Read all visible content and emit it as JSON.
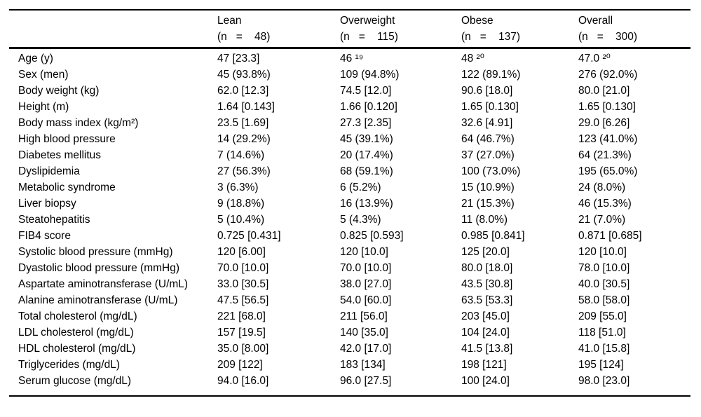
{
  "page": {
    "background_color": "#ffffff",
    "text_color": "#000000",
    "rule_color": "#000000"
  },
  "table": {
    "columns": [
      {
        "label": "",
        "sub": ""
      },
      {
        "label": "Lean",
        "sub": "(n   =    48)"
      },
      {
        "label": "Overweight",
        "sub": "(n   =    115)"
      },
      {
        "label": "Obese",
        "sub": "(n   =    137)"
      },
      {
        "label": "Overall",
        "sub": "(n   =    300)"
      }
    ],
    "rows": [
      {
        "label": "Age (y)",
        "values": [
          "47 [23.3]",
          "46 ¹⁹",
          "48 ²⁰",
          "47.0 ²⁰"
        ]
      },
      {
        "label": "Sex (men)",
        "values": [
          "45 (93.8%)",
          "109 (94.8%)",
          "122 (89.1%)",
          "276 (92.0%)"
        ]
      },
      {
        "label": "Body weight (kg)",
        "values": [
          "62.0 [12.3]",
          "74.5 [12.0]",
          "90.6 [18.0]",
          "80.0 [21.0]"
        ]
      },
      {
        "label": "Height (m)",
        "values": [
          "1.64 [0.143]",
          "1.66 [0.120]",
          "1.65 [0.130]",
          "1.65 [0.130]"
        ]
      },
      {
        "label": "Body mass index (kg/m²)",
        "values": [
          "23.5 [1.69]",
          "27.3 [2.35]",
          "32.6 [4.91]",
          "29.0 [6.26]"
        ]
      },
      {
        "label": "High blood pressure",
        "values": [
          "14 (29.2%)",
          "45 (39.1%)",
          "64 (46.7%)",
          "123 (41.0%)"
        ]
      },
      {
        "label": "Diabetes mellitus",
        "values": [
          "7 (14.6%)",
          "20 (17.4%)",
          "37 (27.0%)",
          "64 (21.3%)"
        ]
      },
      {
        "label": "Dyslipidemia",
        "values": [
          "27 (56.3%)",
          "68 (59.1%)",
          "100 (73.0%)",
          "195 (65.0%)"
        ]
      },
      {
        "label": "Metabolic syndrome",
        "values": [
          "3 (6.3%)",
          "6 (5.2%)",
          "15 (10.9%)",
          "24 (8.0%)"
        ]
      },
      {
        "label": "Liver biopsy",
        "values": [
          "9 (18.8%)",
          "16 (13.9%)",
          "21 (15.3%)",
          "46 (15.3%)"
        ]
      },
      {
        "label": "Steatohepatitis",
        "values": [
          "5 (10.4%)",
          "5 (4.3%)",
          "11 (8.0%)",
          "21 (7.0%)"
        ]
      },
      {
        "label": "FIB4 score",
        "values": [
          "0.725 [0.431]",
          "0.825 [0.593]",
          "0.985 [0.841]",
          "0.871 [0.685]"
        ]
      },
      {
        "label": "Systolic blood pressure (mmHg)",
        "values": [
          "120 [6.00]",
          "120 [10.0]",
          "125 [20.0]",
          "120 [10.0]"
        ]
      },
      {
        "label": "Dyastolic blood pressure (mmHg)",
        "values": [
          "70.0 [10.0]",
          "70.0 [10.0]",
          "80.0 [18.0]",
          "78.0 [10.0]"
        ]
      },
      {
        "label": "Aspartate aminotransferase (U/mL)",
        "values": [
          "33.0 [30.5]",
          "38.0 [27.0]",
          "43.5 [30.8]",
          "40.0 [30.5]"
        ]
      },
      {
        "label": "Alanine aminotransferase (U/mL)",
        "values": [
          "47.5 [56.5]",
          "54.0 [60.0]",
          "63.5 [53.3]",
          "58.0 [58.0]"
        ]
      },
      {
        "label": "Total cholesterol (mg/dL)",
        "values": [
          "221 [68.0]",
          "211 [56.0]",
          "203 [45.0]",
          "209 [55.0]"
        ]
      },
      {
        "label": "LDL cholesterol (mg/dL)",
        "values": [
          "157 [19.5]",
          "140 [35.0]",
          "104 [24.0]",
          "118 [51.0]"
        ]
      },
      {
        "label": "HDL cholesterol (mg/dL)",
        "values": [
          "35.0 [8.00]",
          "42.0 [17.0]",
          "41.5 [13.8]",
          "41.0 [15.8]"
        ]
      },
      {
        "label": "Triglycerides (mg/dL)",
        "values": [
          "209 [122]",
          "183 [134]",
          "198 [121]",
          "195 [124]"
        ]
      },
      {
        "label": "Serum glucose (mg/dL)",
        "values": [
          "94.0 [16.0]",
          "96.0 [27.5]",
          "100 [24.0]",
          "98.0 [23.0]"
        ]
      }
    ]
  }
}
